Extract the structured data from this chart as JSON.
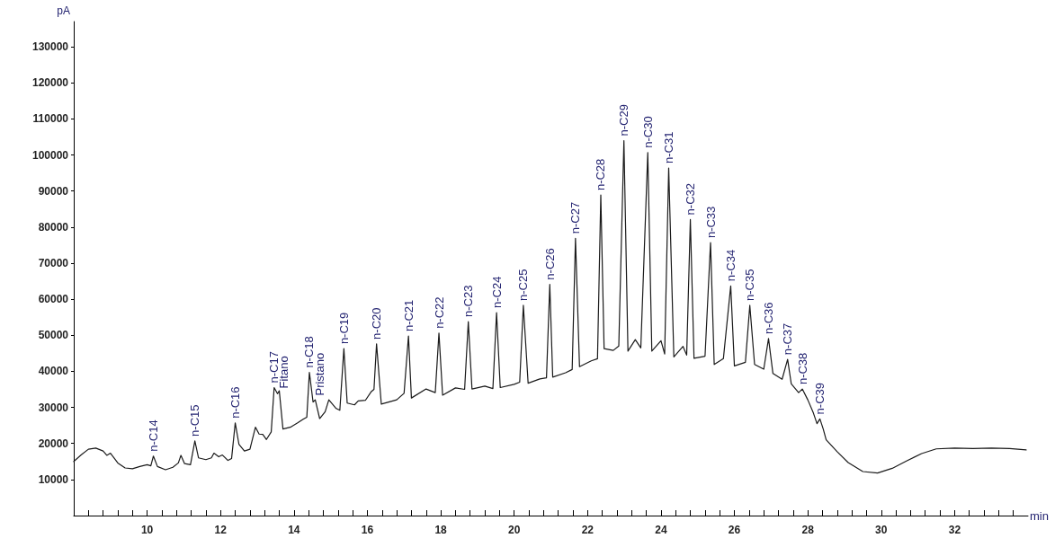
{
  "chart_data": {
    "type": "line",
    "xlabel": "min",
    "ylabel": "pA",
    "color": "#1a1a1a",
    "marker": "none",
    "line_style": "solid",
    "x": [
      8.0,
      8.2,
      8.4,
      8.6,
      8.8,
      8.9,
      9.0,
      9.2,
      9.4,
      9.6,
      9.8,
      10.0,
      10.1,
      10.17,
      10.28,
      10.5,
      10.7,
      10.85,
      10.92,
      11.02,
      11.18,
      11.3,
      11.4,
      11.6,
      11.75,
      11.82,
      11.95,
      12.05,
      12.2,
      12.3,
      12.4,
      12.5,
      12.65,
      12.8,
      12.95,
      13.05,
      13.15,
      13.25,
      13.38,
      13.46,
      13.55,
      13.6,
      13.7,
      13.9,
      14.1,
      14.25,
      14.35,
      14.42,
      14.52,
      14.58,
      14.7,
      14.85,
      14.95,
      15.15,
      15.25,
      15.36,
      15.45,
      15.65,
      15.75,
      15.95,
      16.1,
      16.18,
      16.25,
      16.38,
      16.8,
      17.0,
      17.12,
      17.2,
      17.6,
      17.85,
      17.95,
      18.05,
      18.4,
      18.65,
      18.75,
      18.85,
      19.2,
      19.42,
      19.52,
      19.62,
      20.0,
      20.15,
      20.25,
      20.38,
      20.7,
      20.88,
      20.97,
      21.05,
      21.4,
      21.58,
      21.67,
      21.78,
      22.1,
      22.27,
      22.36,
      22.45,
      22.7,
      22.85,
      22.99,
      23.1,
      23.3,
      23.45,
      23.64,
      23.75,
      24.0,
      24.1,
      24.21,
      24.35,
      24.6,
      24.7,
      24.8,
      24.9,
      25.2,
      25.35,
      25.45,
      25.7,
      25.9,
      26.0,
      26.3,
      26.42,
      26.55,
      26.8,
      26.93,
      27.05,
      27.3,
      27.45,
      27.55,
      27.75,
      27.85,
      28.0,
      28.15,
      28.25,
      28.33,
      28.42,
      28.5,
      28.8,
      29.1,
      29.5,
      29.9,
      30.3,
      30.7,
      31.1,
      31.5,
      32.0,
      32.5,
      33.0,
      33.5,
      33.95
    ],
    "values": [
      15000,
      16800,
      18400,
      18700,
      17900,
      16700,
      17300,
      14600,
      13200,
      13000,
      13600,
      14100,
      13800,
      16500,
      13600,
      12700,
      13400,
      14600,
      16700,
      14400,
      14100,
      20700,
      16000,
      15500,
      16000,
      17300,
      16300,
      16800,
      15300,
      15800,
      25700,
      19800,
      17900,
      18400,
      24500,
      22600,
      22500,
      21100,
      23200,
      35500,
      33800,
      34600,
      24000,
      24500,
      25700,
      26700,
      27300,
      39700,
      31500,
      32100,
      26900,
      28800,
      32100,
      29700,
      29200,
      46300,
      31200,
      30700,
      31800,
      32000,
      34300,
      35000,
      47600,
      30900,
      32100,
      33900,
      49800,
      32600,
      35100,
      34100,
      50600,
      33400,
      35400,
      35000,
      53800,
      35100,
      35900,
      35200,
      56300,
      35500,
      36400,
      37000,
      58300,
      36700,
      37900,
      38200,
      64100,
      38400,
      39600,
      40500,
      76900,
      41300,
      42900,
      43500,
      88900,
      46300,
      45800,
      47000,
      104000,
      45600,
      48800,
      46500,
      100700,
      45600,
      48500,
      44800,
      96400,
      44000,
      46900,
      44500,
      82100,
      43600,
      44200,
      75700,
      41900,
      43500,
      63700,
      41500,
      42500,
      58300,
      41900,
      40600,
      49100,
      39400,
      37800,
      43300,
      36500,
      34100,
      35100,
      32100,
      28500,
      25500,
      26800,
      24000,
      21000,
      17700,
      14700,
      12200,
      11800,
      13100,
      15200,
      17200,
      18500,
      18700,
      18600,
      18700,
      18600,
      18200
    ],
    "xlim": [
      8,
      34
    ],
    "xticks": [
      {
        "value": 8.0,
        "label": null
      },
      {
        "value": 8.4,
        "label": null
      },
      {
        "value": 8.8,
        "label": null
      },
      {
        "value": 9.2,
        "label": null
      },
      {
        "value": 9.6,
        "label": null
      },
      10,
      {
        "value": 10.4,
        "label": null
      },
      {
        "value": 10.8,
        "label": null
      },
      {
        "value": 11.2,
        "label": null
      },
      {
        "value": 11.6,
        "label": null
      },
      12,
      {
        "value": 12.4,
        "label": null
      },
      {
        "value": 12.8,
        "label": null
      },
      {
        "value": 13.2,
        "label": null
      },
      {
        "value": 13.6,
        "label": null
      },
      14,
      {
        "value": 14.4,
        "label": null
      },
      {
        "value": 14.8,
        "label": null
      },
      {
        "value": 15.2,
        "label": null
      },
      {
        "value": 15.6,
        "label": null
      },
      16,
      {
        "value": 16.4,
        "label": null
      },
      {
        "value": 16.8,
        "label": null
      },
      {
        "value": 17.2,
        "label": null
      },
      {
        "value": 17.6,
        "label": null
      },
      18,
      {
        "value": 18.4,
        "label": null
      },
      {
        "value": 18.8,
        "label": null
      },
      {
        "value": 19.2,
        "label": null
      },
      {
        "value": 19.6,
        "label": null
      },
      20,
      {
        "value": 20.4,
        "label": null
      },
      {
        "value": 20.8,
        "label": null
      },
      {
        "value": 21.2,
        "label": null
      },
      {
        "value": 21.6,
        "label": null
      },
      22,
      {
        "value": 22.4,
        "label": null
      },
      {
        "value": 22.8,
        "label": null
      },
      {
        "value": 23.2,
        "label": null
      },
      {
        "value": 23.6,
        "label": null
      },
      24,
      {
        "value": 24.4,
        "label": null
      },
      {
        "value": 24.8,
        "label": null
      },
      {
        "value": 25.2,
        "label": null
      },
      {
        "value": 25.6,
        "label": null
      },
      26,
      {
        "value": 26.4,
        "label": null
      },
      {
        "value": 26.8,
        "label": null
      },
      {
        "value": 27.2,
        "label": null
      },
      {
        "value": 27.6,
        "label": null
      },
      28,
      {
        "value": 28.4,
        "label": null
      },
      {
        "value": 28.8,
        "label": null
      },
      {
        "value": 29.2,
        "label": null
      },
      {
        "value": 29.6,
        "label": null
      },
      30,
      {
        "value": 30.4,
        "label": null
      },
      {
        "value": 30.8,
        "label": null
      },
      {
        "value": 31.2,
        "label": null
      },
      {
        "value": 31.6,
        "label": null
      },
      32,
      {
        "value": 32.4,
        "label": null
      },
      {
        "value": 32.8,
        "label": null
      },
      {
        "value": 33.2,
        "label": null
      },
      {
        "value": 33.6,
        "label": null
      }
    ],
    "ylim": [
      0,
      137000
    ],
    "yticks": [
      10000,
      20000,
      30000,
      40000,
      50000,
      60000,
      70000,
      80000,
      90000,
      100000,
      110000,
      120000,
      130000
    ],
    "annotations": [
      {
        "text": "n-C14",
        "x": 10.17,
        "y": 16500
      },
      {
        "text": "n-C15",
        "x": 11.3,
        "y": 20700
      },
      {
        "text": "n-C16",
        "x": 12.4,
        "y": 25700
      },
      {
        "text": "n-C17",
        "x": 13.46,
        "y": 35500
      },
      {
        "text": "Fitano",
        "x": 13.72,
        "y": 34000
      },
      {
        "text": "n-C18",
        "x": 14.42,
        "y": 39700
      },
      {
        "text": "Pristano",
        "x": 14.7,
        "y": 32000
      },
      {
        "text": "n-C19",
        "x": 15.36,
        "y": 46300
      },
      {
        "text": "n-C20",
        "x": 16.25,
        "y": 47600
      },
      {
        "text": "n-C21",
        "x": 17.12,
        "y": 49800
      },
      {
        "text": "n-C22",
        "x": 17.95,
        "y": 50600
      },
      {
        "text": "n-C23",
        "x": 18.75,
        "y": 53800
      },
      {
        "text": "n-C24",
        "x": 19.52,
        "y": 56300
      },
      {
        "text": "n-C25",
        "x": 20.25,
        "y": 58300
      },
      {
        "text": "n-C26",
        "x": 20.97,
        "y": 64100
      },
      {
        "text": "n-C27",
        "x": 21.67,
        "y": 76900
      },
      {
        "text": "n-C28",
        "x": 22.36,
        "y": 88900
      },
      {
        "text": "n-C29",
        "x": 22.99,
        "y": 104000
      },
      {
        "text": "n-C30",
        "x": 23.64,
        "y": 100700
      },
      {
        "text": "n-C31",
        "x": 24.21,
        "y": 96400
      },
      {
        "text": "n-C32",
        "x": 24.8,
        "y": 82100
      },
      {
        "text": "n-C33",
        "x": 25.35,
        "y": 75700
      },
      {
        "text": "n-C34",
        "x": 25.9,
        "y": 63700
      },
      {
        "text": "n-C35",
        "x": 26.42,
        "y": 58300
      },
      {
        "text": "n-C36",
        "x": 26.93,
        "y": 49100
      },
      {
        "text": "n-C37",
        "x": 27.45,
        "y": 43300
      },
      {
        "text": "n-C38",
        "x": 27.85,
        "y": 35100
      },
      {
        "text": "n-C39",
        "x": 28.33,
        "y": 26800
      }
    ]
  }
}
